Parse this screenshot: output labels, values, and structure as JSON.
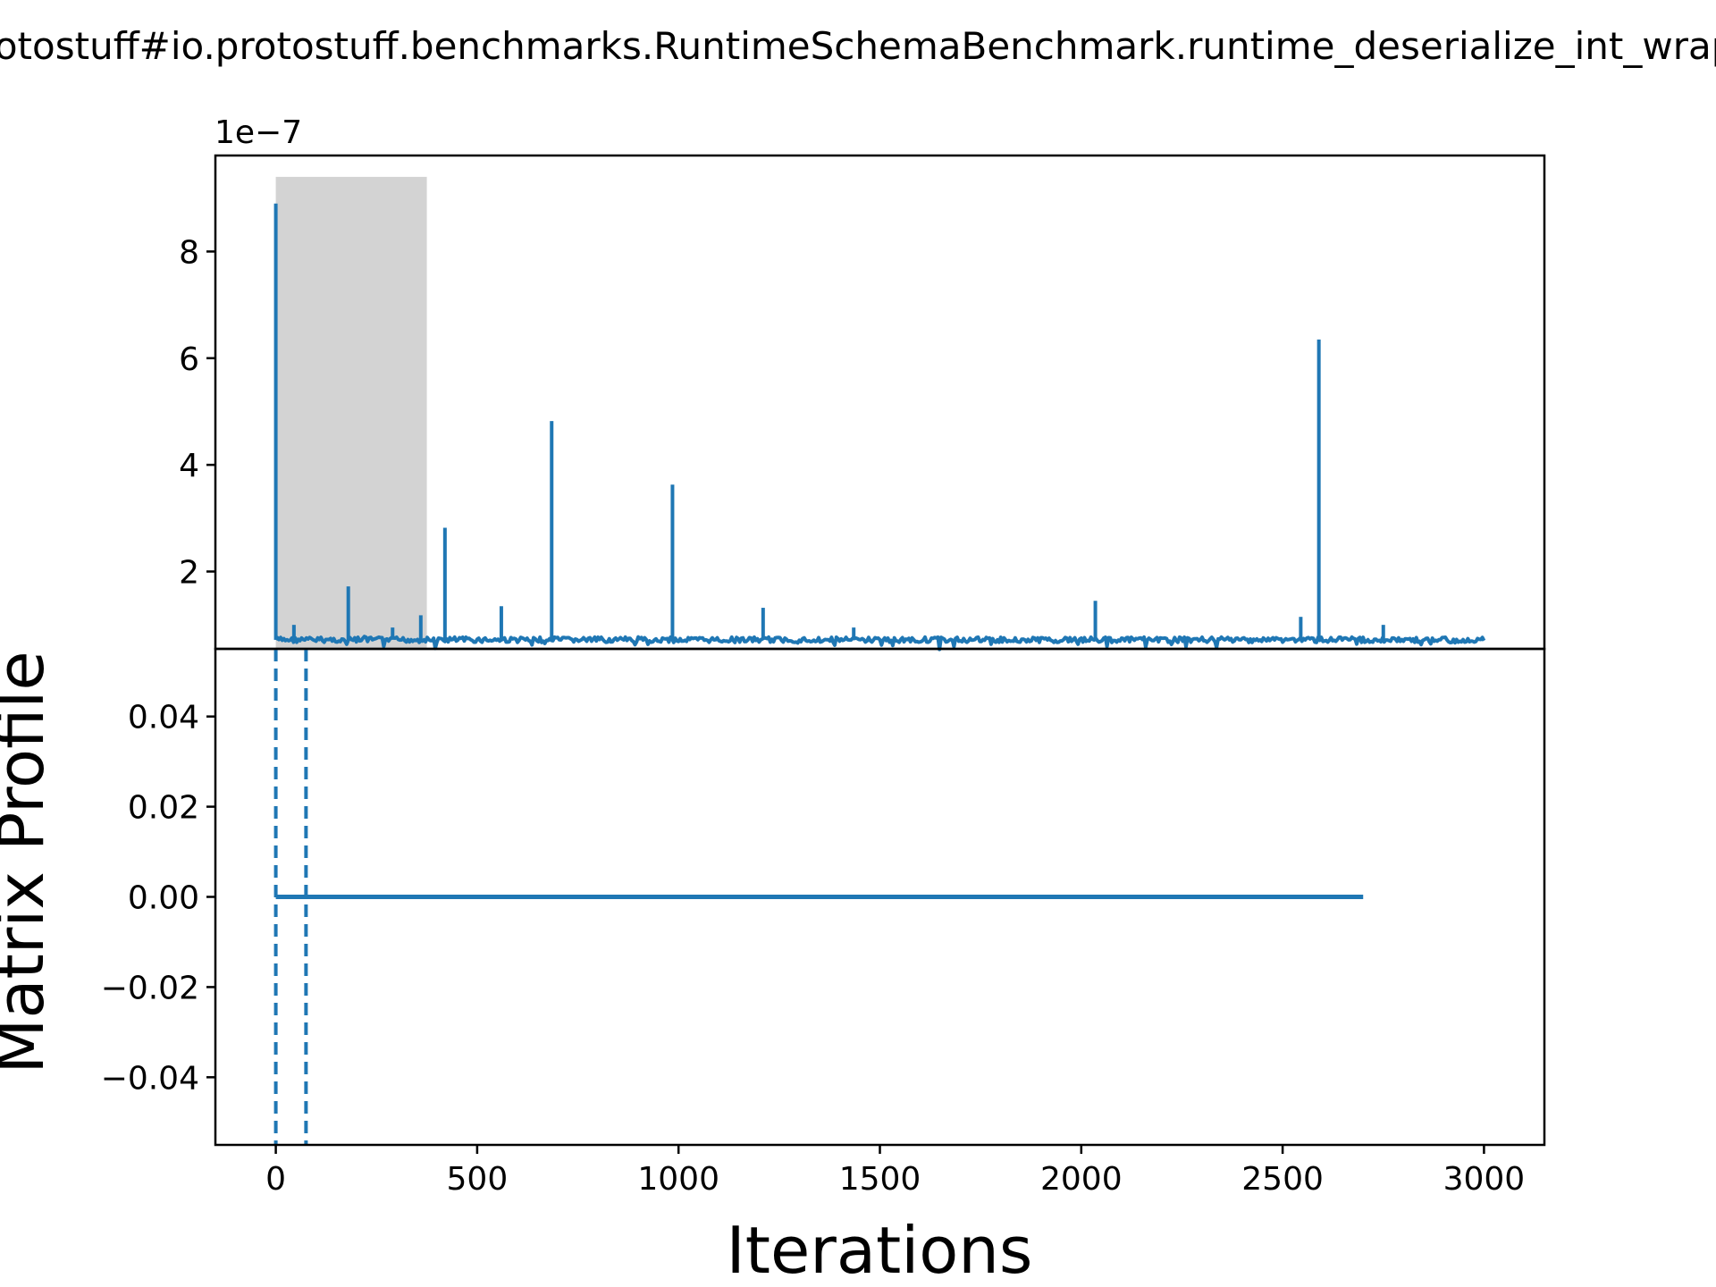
{
  "chart_data": [
    {
      "panel": "top",
      "type": "line",
      "title": "protostuff#io.protostuff.benchmarks.RuntimeSchemaBenchmark.runtime_deserialize_int_wrapper",
      "y_offset_text": "1e−7",
      "ylim": [
        0.55,
        9.8
      ],
      "xlim": [
        -150,
        3150
      ],
      "yticks": [
        2,
        4,
        6,
        8
      ],
      "ytick_labels": [
        "2",
        "4",
        "6",
        "8"
      ],
      "highlight_region": {
        "x_start": 0,
        "x_end": 375,
        "y_start": 0.55,
        "y_end": 9.4
      },
      "baseline": 0.72,
      "x_end": 3000,
      "spikes": [
        {
          "x": 0,
          "y": 8.9
        },
        {
          "x": 45,
          "y": 1.0
        },
        {
          "x": 180,
          "y": 1.72
        },
        {
          "x": 290,
          "y": 0.95
        },
        {
          "x": 360,
          "y": 1.18
        },
        {
          "x": 420,
          "y": 2.82
        },
        {
          "x": 560,
          "y": 1.35
        },
        {
          "x": 685,
          "y": 4.82
        },
        {
          "x": 985,
          "y": 3.63
        },
        {
          "x": 1210,
          "y": 1.32
        },
        {
          "x": 1435,
          "y": 0.95
        },
        {
          "x": 2035,
          "y": 1.45
        },
        {
          "x": 2545,
          "y": 1.15
        },
        {
          "x": 2590,
          "y": 6.35
        },
        {
          "x": 2750,
          "y": 1.0
        }
      ],
      "color": "#1f77b4",
      "highlight_color": "#d3d3d3"
    },
    {
      "panel": "bottom",
      "type": "line",
      "ylabel": "Matrix Profile",
      "xlabel": "Iterations",
      "ylim": [
        -0.055,
        0.055
      ],
      "xlim": [
        -150,
        3150
      ],
      "yticks": [
        -0.04,
        -0.02,
        0,
        0.02,
        0.04
      ],
      "ytick_labels": [
        "−0.04",
        "−0.02",
        "0.00",
        "0.02",
        "0.04"
      ],
      "xticks": [
        0,
        500,
        1000,
        1500,
        2000,
        2500,
        3000
      ],
      "xtick_labels": [
        "0",
        "500",
        "1000",
        "1500",
        "2000",
        "2500",
        "3000"
      ],
      "series": [
        {
          "x": [
            0,
            2700
          ],
          "values": [
            0,
            0
          ]
        }
      ],
      "vlines": [
        0,
        75
      ],
      "color": "#1f77b4"
    }
  ]
}
